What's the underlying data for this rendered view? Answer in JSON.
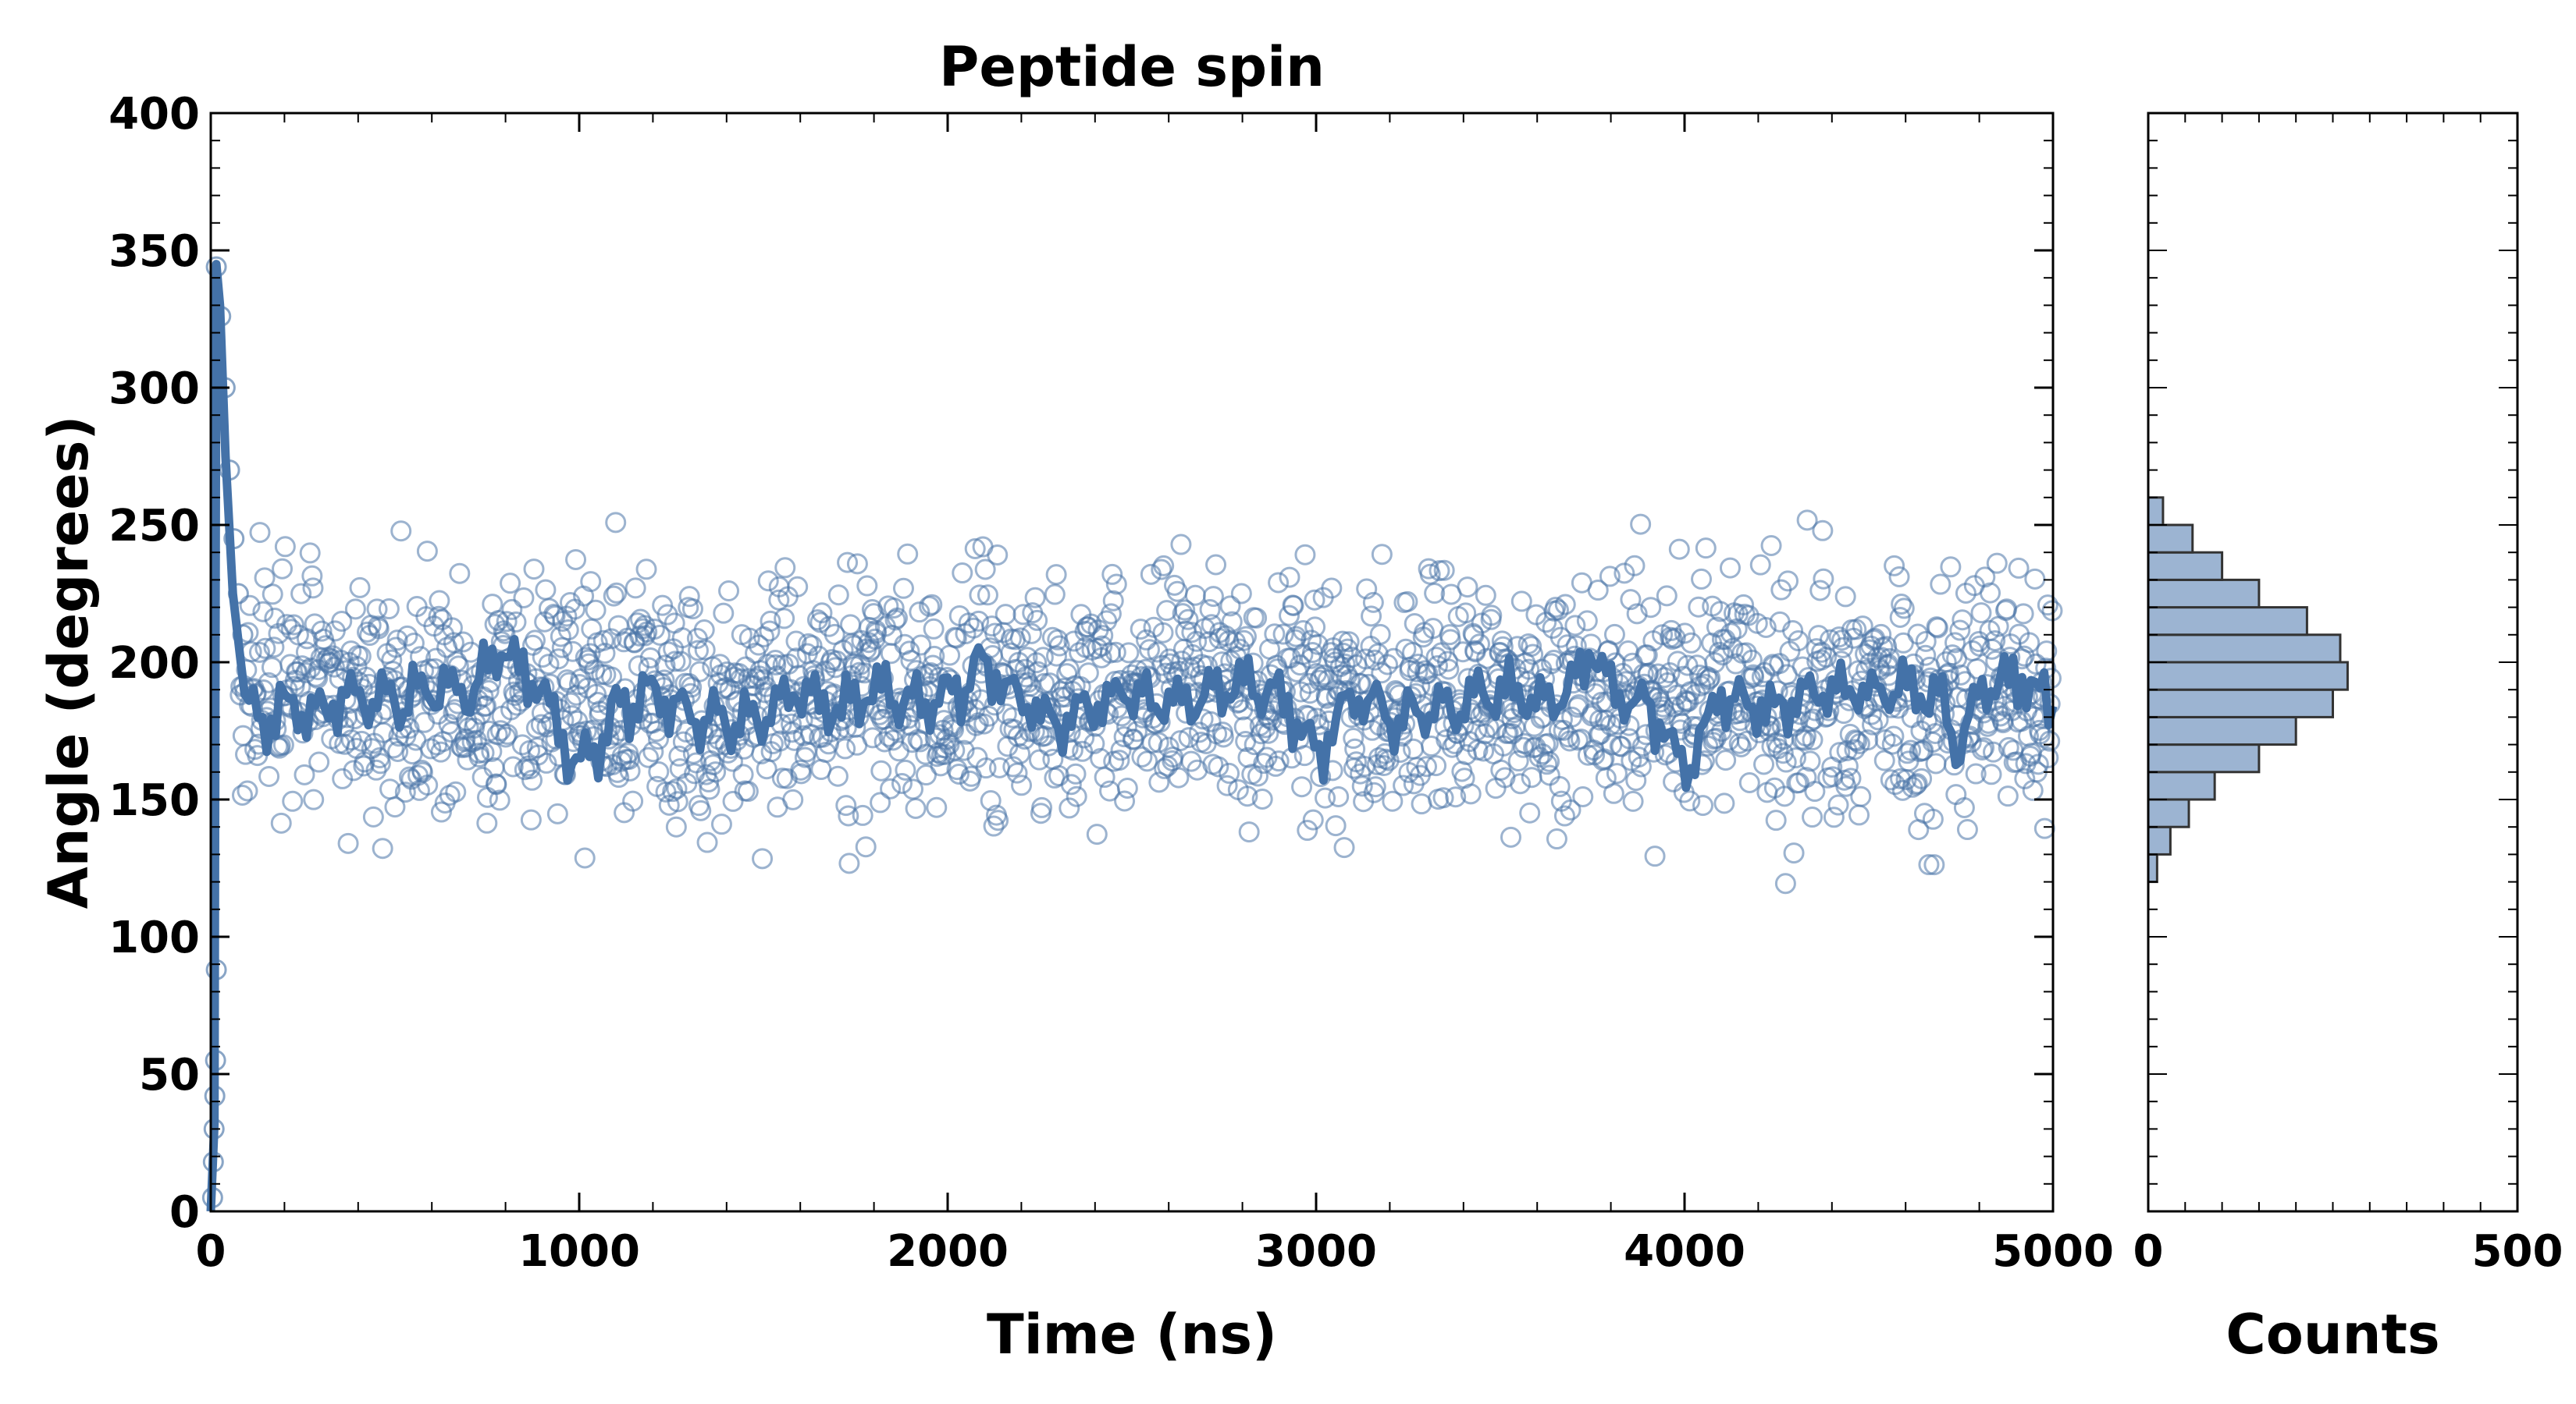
{
  "chart_data": [
    {
      "type": "scatter",
      "title": "Peptide spin",
      "xlabel": "Time (ns)",
      "ylabel": "Angle (degrees)",
      "xlim": [
        0,
        5000
      ],
      "ylim": [
        0,
        400
      ],
      "x_ticks": [
        "0",
        "1000",
        "2000",
        "3000",
        "4000",
        "5000"
      ],
      "y_ticks": [
        "0",
        "50",
        "100",
        "150",
        "200",
        "250",
        "300",
        "350",
        "400"
      ],
      "grid": false,
      "legend": "none",
      "series": [
        {
          "kind": "points",
          "marker": "open-circle",
          "color": "#4a74a8",
          "n_points": 2000,
          "start_values": [
            5,
            18,
            30,
            42,
            55,
            88
          ],
          "plateau_mean": 188,
          "plateau_sd": 21
        },
        {
          "kind": "line",
          "color": "#4472a8",
          "points": [
            [
              0,
              0
            ],
            [
              10,
              32
            ],
            [
              15,
              345
            ],
            [
              25,
              330
            ],
            [
              40,
              275
            ],
            [
              60,
              225
            ],
            [
              80,
              200
            ],
            [
              100,
              182
            ],
            [
              150,
              178
            ],
            [
              200,
              185
            ],
            [
              300,
              183
            ],
            [
              400,
              188
            ],
            [
              500,
              185
            ],
            [
              600,
              190
            ],
            [
              700,
              188
            ],
            [
              780,
              205
            ],
            [
              900,
              190
            ],
            [
              1000,
              160
            ],
            [
              1100,
              182
            ],
            [
              1200,
              190
            ],
            [
              1300,
              180
            ],
            [
              1400,
              178
            ],
            [
              1500,
              180
            ],
            [
              1600,
              190
            ],
            [
              1700,
              182
            ],
            [
              1800,
              190
            ],
            [
              1900,
              185
            ],
            [
              2000,
              188
            ],
            [
              2100,
              198
            ],
            [
              2200,
              186
            ],
            [
              2300,
              178
            ],
            [
              2400,
              184
            ],
            [
              2500,
              190
            ],
            [
              2600,
              185
            ],
            [
              2700,
              188
            ],
            [
              2800,
              192
            ],
            [
              2900,
              188
            ],
            [
              3000,
              165
            ],
            [
              3100,
              188
            ],
            [
              3200,
              180
            ],
            [
              3300,
              182
            ],
            [
              3400,
              185
            ],
            [
              3500,
              190
            ],
            [
              3600,
              186
            ],
            [
              3700,
              192
            ],
            [
              3750,
              205
            ],
            [
              3800,
              188
            ],
            [
              3900,
              185
            ],
            [
              4000,
              160
            ],
            [
              4100,
              188
            ],
            [
              4200,
              182
            ],
            [
              4300,
              186
            ],
            [
              4400,
              190
            ],
            [
              4500,
              188
            ],
            [
              4600,
              192
            ],
            [
              4700,
              185
            ],
            [
              4750,
              168
            ],
            [
              4800,
              190
            ],
            [
              4900,
              195
            ],
            [
              5000,
              185
            ]
          ]
        }
      ]
    },
    {
      "type": "bar",
      "orientation": "horizontal",
      "xlabel": "Counts",
      "xlim": [
        0,
        500
      ],
      "x_ticks": [
        "0",
        "500"
      ],
      "ylim": [
        0,
        400
      ],
      "color": "#9cb4d2",
      "edge_color": "#333333",
      "bin_edges": [
        120,
        130,
        140,
        150,
        160,
        170,
        180,
        190,
        200,
        210,
        220,
        230,
        240,
        250,
        260
      ],
      "values": [
        12,
        30,
        55,
        90,
        150,
        200,
        250,
        270,
        260,
        215,
        150,
        100,
        60,
        20,
        5
      ]
    }
  ]
}
